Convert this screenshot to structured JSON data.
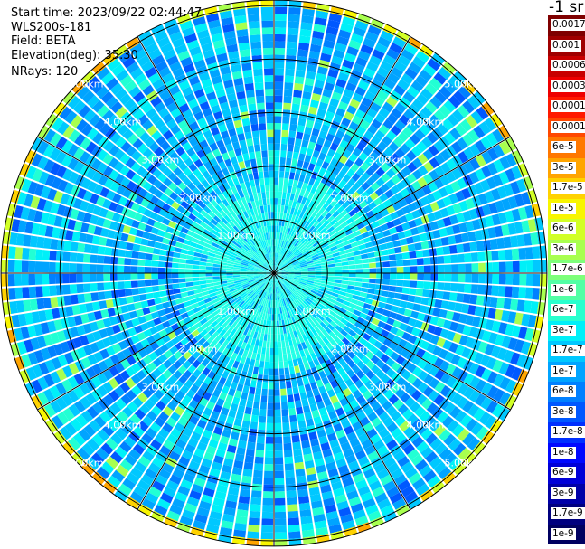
{
  "info": {
    "start_time": "Start time: 2023/09/22 02:44:47",
    "instrument": "WLS200s-181",
    "field": "Field: BETA",
    "elevation": "Elevation(deg): 35.30",
    "nrays": "NRays: 120"
  },
  "colorbar": {
    "title": "-1 sr",
    "levels": [
      {
        "label": "0.0017",
        "color": "#7f0000"
      },
      {
        "label": "0.001",
        "color": "#a00000"
      },
      {
        "label": "0.0006",
        "color": "#c80000"
      },
      {
        "label": "0.0003",
        "color": "#ee0000"
      },
      {
        "label": "0.00017",
        "color": "#ff1a00"
      },
      {
        "label": "0.0001",
        "color": "#ff4800"
      },
      {
        "label": "6e-5",
        "color": "#ff7800"
      },
      {
        "label": "3e-5",
        "color": "#ffa500"
      },
      {
        "label": "1.7e-5",
        "color": "#ffd200"
      },
      {
        "label": "1e-5",
        "color": "#f8f500"
      },
      {
        "label": "6e-6",
        "color": "#d2ff26"
      },
      {
        "label": "3e-6",
        "color": "#a8ff4f"
      },
      {
        "label": "1.7e-6",
        "color": "#7dff7a"
      },
      {
        "label": "1e-6",
        "color": "#52ffa5"
      },
      {
        "label": "6e-7",
        "color": "#29ffce"
      },
      {
        "label": "3e-7",
        "color": "#00f0f8"
      },
      {
        "label": "1.7e-7",
        "color": "#00c8ff"
      },
      {
        "label": "1e-7",
        "color": "#00a4ff"
      },
      {
        "label": "6e-8",
        "color": "#0080ff"
      },
      {
        "label": "3e-8",
        "color": "#0058ff"
      },
      {
        "label": "1.7e-8",
        "color": "#0030ff"
      },
      {
        "label": "1e-8",
        "color": "#0008ff"
      },
      {
        "label": "6e-9",
        "color": "#0000d8"
      },
      {
        "label": "3e-9",
        "color": "#0000a8"
      },
      {
        "label": "1.7e-9",
        "color": "#00007f"
      },
      {
        "label": "1e-9",
        "color": "#000060"
      }
    ]
  },
  "chart_data": {
    "type": "heatmap",
    "projection": "polar (PPI scan)",
    "field": "BETA",
    "nrays": 120,
    "elevation_deg": 35.3,
    "range_rings_km": [
      1.0,
      2.0,
      3.0,
      4.0,
      5.0
    ],
    "range_ring_labels": [
      "1.00km",
      "2.00km",
      "3.00km",
      "4.00km",
      "5.00km"
    ],
    "max_range_km": 5.1,
    "azimuth_spokes_deg": [
      0,
      30,
      60,
      90,
      120,
      150,
      180,
      210,
      240,
      270,
      300,
      330
    ],
    "typical_value_near": "1.7e-7 to 3e-7",
    "typical_value_far": "6e-8 to 1.7e-7",
    "edge_value_range": "6e-6 to 3e-5",
    "colorbar_scale": "log",
    "colorbar_title": "-1 sr"
  }
}
